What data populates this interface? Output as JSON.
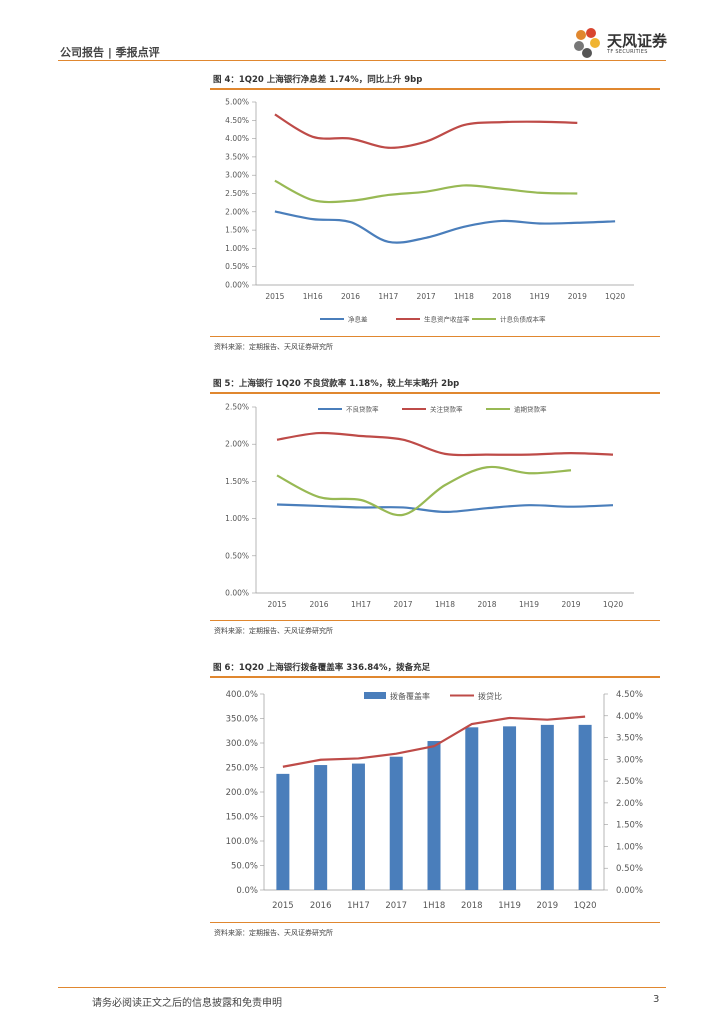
{
  "header": {
    "left": "公司报告 | 季报点评",
    "logo_cn": "天风证券",
    "logo_en": "TF SECURITIES"
  },
  "figures": [
    {
      "title": "图 4：1Q20 上海银行净息差 1.74%，同比上升 9bp",
      "source": "资料来源：定期报告、天风证券研究所"
    },
    {
      "title": "图 5：上海银行 1Q20 不良贷款率 1.18%，较上年末略升 2bp",
      "source": "资料来源：定期报告、天风证券研究所"
    },
    {
      "title": "图 6：1Q20 上海银行拨备覆盖率 336.84%，拨备充足",
      "source": "资料来源：定期报告、天风证券研究所"
    }
  ],
  "footer": {
    "disclaimer": "请务必阅读正文之后的信息披露和免责申明",
    "page": "3"
  },
  "colors": {
    "accent": "#e0872f",
    "blue": "#4a7ebb",
    "red": "#be4b48",
    "green": "#98b954",
    "bar": "#4a7ebb"
  },
  "chart_data": [
    {
      "type": "line",
      "categories": [
        "2015",
        "1H16",
        "2016",
        "1H17",
        "2017",
        "1H18",
        "2018",
        "1H19",
        "2019",
        "1Q20"
      ],
      "ylim": [
        0,
        5
      ],
      "yticks": [
        "0.00%",
        "0.50%",
        "1.00%",
        "1.50%",
        "2.00%",
        "2.50%",
        "3.00%",
        "3.50%",
        "4.00%",
        "4.50%",
        "5.00%"
      ],
      "series": [
        {
          "name": "净息差",
          "color": "#4a7ebb",
          "values": [
            2.01,
            1.8,
            1.72,
            1.18,
            1.29,
            1.59,
            1.75,
            1.68,
            1.7,
            1.74
          ]
        },
        {
          "name": "生息资产收益率",
          "color": "#be4b48",
          "values": [
            4.66,
            4.05,
            4.0,
            3.75,
            3.92,
            4.37,
            4.45,
            4.46,
            4.43,
            null
          ]
        },
        {
          "name": "计息负债成本率",
          "color": "#98b954",
          "values": [
            2.85,
            2.32,
            2.3,
            2.46,
            2.55,
            2.72,
            2.63,
            2.52,
            2.5,
            null
          ]
        }
      ],
      "legend_position": "bottom"
    },
    {
      "type": "line",
      "categories": [
        "2015",
        "2016",
        "1H17",
        "2017",
        "1H18",
        "2018",
        "1H19",
        "2019",
        "1Q20"
      ],
      "ylim": [
        0,
        2.5
      ],
      "yticks": [
        "0.00%",
        "0.50%",
        "1.00%",
        "1.50%",
        "2.00%",
        "2.50%"
      ],
      "series": [
        {
          "name": "不良贷款率",
          "color": "#4a7ebb",
          "values": [
            1.19,
            1.17,
            1.15,
            1.15,
            1.09,
            1.14,
            1.18,
            1.16,
            1.18
          ]
        },
        {
          "name": "关注贷款率",
          "color": "#be4b48",
          "values": [
            2.06,
            2.15,
            2.11,
            2.06,
            1.87,
            1.86,
            1.86,
            1.88,
            1.86
          ]
        },
        {
          "name": "逾期贷款率",
          "color": "#98b954",
          "values": [
            1.58,
            1.29,
            1.25,
            1.05,
            1.45,
            1.69,
            1.61,
            1.65,
            null
          ]
        }
      ],
      "legend_position": "top"
    },
    {
      "type": "bar",
      "categories": [
        "2015",
        "2016",
        "1H17",
        "2017",
        "1H18",
        "2018",
        "1H19",
        "2019",
        "1Q20"
      ],
      "ylim": [
        0,
        400
      ],
      "yticks": [
        "0.0%",
        "50.0%",
        "100.0%",
        "150.0%",
        "200.0%",
        "250.0%",
        "300.0%",
        "350.0%",
        "400.0%"
      ],
      "y2lim": [
        0,
        4.5
      ],
      "y2ticks": [
        "0.00%",
        "0.50%",
        "1.00%",
        "1.50%",
        "2.00%",
        "2.50%",
        "3.00%",
        "3.50%",
        "4.00%",
        "4.50%"
      ],
      "series": [
        {
          "name": "拨备覆盖率",
          "kind": "bar",
          "axis": "left",
          "color": "#4a7ebb",
          "values": [
            237,
            255,
            258,
            272,
            304,
            332,
            334,
            337,
            337
          ]
        },
        {
          "name": "拨贷比",
          "kind": "line",
          "axis": "right",
          "color": "#be4b48",
          "values": [
            2.83,
            2.99,
            3.02,
            3.13,
            3.3,
            3.81,
            3.95,
            3.91,
            3.98
          ]
        }
      ],
      "legend_position": "top"
    }
  ]
}
